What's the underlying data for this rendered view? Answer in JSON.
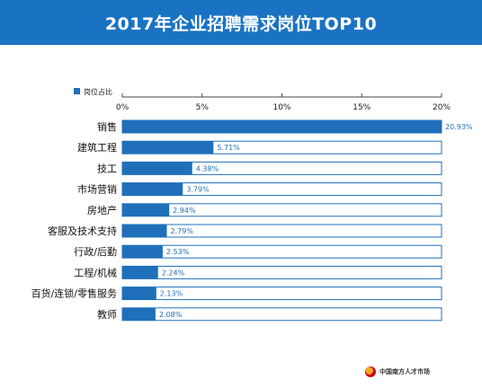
{
  "page": {
    "title": "2017年企业招聘需求岗位TOP10",
    "logo_text": "中国南方人才市场"
  },
  "colors": {
    "header": "#1a73c2",
    "bar": "#1f6fba",
    "track_border": "#1f6fba",
    "label_value": "#1f6fba"
  },
  "chart_data": {
    "type": "bar",
    "orientation": "horizontal",
    "title": "2017年企业招聘需求岗位TOP10",
    "legend": {
      "position": "top-left",
      "entries": [
        "岗位占比"
      ]
    },
    "xlim": [
      0,
      20
    ],
    "xticks": [
      0,
      5,
      10,
      15,
      20
    ],
    "xtick_labels": [
      "0%",
      "5%",
      "10%",
      "15%",
      "20%"
    ],
    "grid": false,
    "categories": [
      "销售",
      "建筑工程",
      "技工",
      "市场营销",
      "房地产",
      "客服及技术支持",
      "行政/后勤",
      "工程/机械",
      "百货/连锁/零售服务",
      "教师"
    ],
    "series": [
      {
        "name": "岗位占比",
        "values": [
          20.93,
          5.71,
          4.38,
          3.79,
          2.94,
          2.79,
          2.53,
          2.24,
          2.13,
          2.08
        ],
        "labels": [
          "20.93%",
          "5.71%",
          "4.38%",
          "3.79%",
          "2.94%",
          "2.79%",
          "2.53%",
          "2.24%",
          "2.13%",
          "2.08%"
        ]
      }
    ]
  }
}
